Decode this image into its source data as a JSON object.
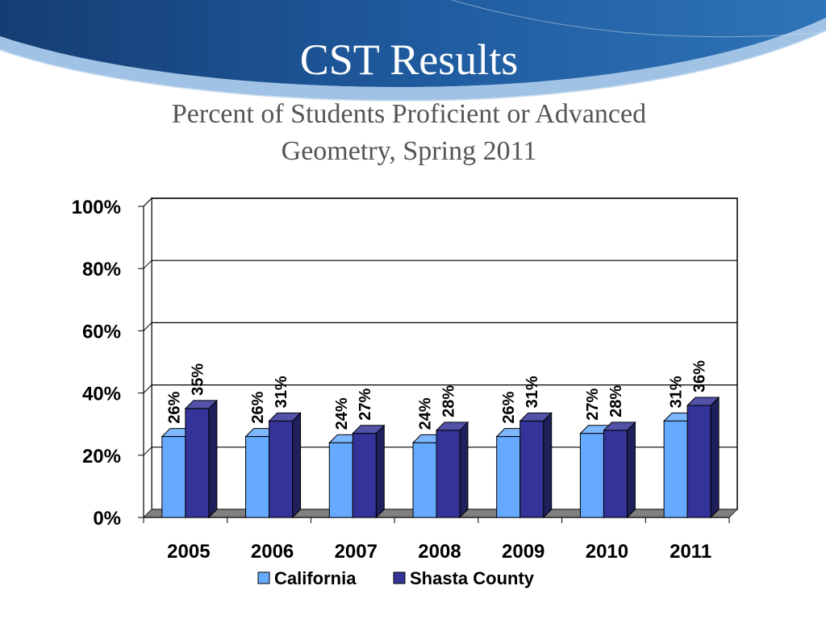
{
  "slide": {
    "title": "CST Results",
    "subtitle_line1": "Percent of Students Proficient or Advanced",
    "subtitle_line2": "Geometry, Spring 2011"
  },
  "colors": {
    "california": "#66aaff",
    "shasta_county": "#333399",
    "banner_dark": "#1f4e8c",
    "banner_light": "#6fa3d6"
  },
  "chart_data": {
    "type": "bar",
    "categories": [
      "2005",
      "2006",
      "2007",
      "2008",
      "2009",
      "2010",
      "2011"
    ],
    "series": [
      {
        "name": "California",
        "values": [
          26,
          26,
          24,
          24,
          26,
          27,
          31
        ]
      },
      {
        "name": "Shasta County",
        "values": [
          35,
          31,
          27,
          28,
          31,
          28,
          36
        ]
      }
    ],
    "data_labels": [
      [
        "26%",
        "26%",
        "24%",
        "24%",
        "26%",
        "27%",
        "31%"
      ],
      [
        "35%",
        "31%",
        "27%",
        "28%",
        "31%",
        "28%",
        "36%"
      ]
    ],
    "ylim": [
      0,
      100
    ],
    "yticks": [
      0,
      20,
      40,
      60,
      80,
      100
    ],
    "ytick_labels": [
      "0%",
      "20%",
      "40%",
      "60%",
      "80%",
      "100%"
    ],
    "grid": true,
    "legend_position": "bottom",
    "style": "3d-clustered-column"
  }
}
